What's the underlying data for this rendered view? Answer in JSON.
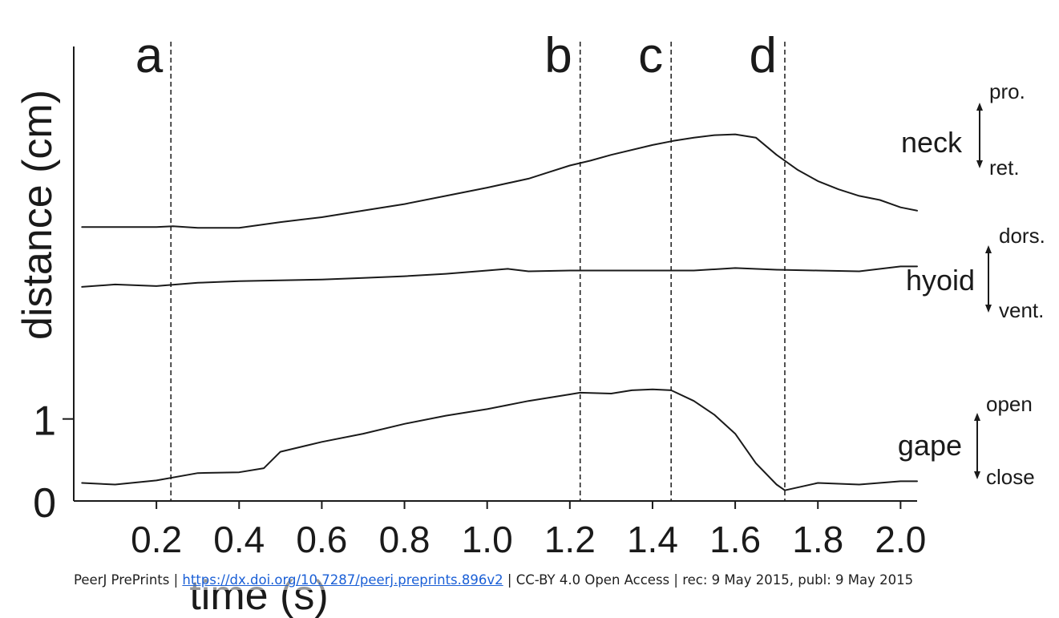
{
  "chart_data": {
    "type": "line",
    "ylabel": "distance (cm)",
    "xlabel": "time (s)",
    "xlim": [
      0,
      2.04
    ],
    "x_ticks": [
      "0.2",
      "0.4",
      "0.6",
      "0.8",
      "1.0",
      "1.2",
      "1.4",
      "1.6",
      "1.8",
      "2.0"
    ],
    "x_tick_values": [
      0.2,
      0.4,
      0.6,
      0.8,
      1.0,
      1.2,
      1.4,
      1.6,
      1.8,
      2.0
    ],
    "ylim": [
      0,
      5.6
    ],
    "y_ticks": [
      "0",
      "1"
    ],
    "y_tick_values": [
      0,
      1
    ],
    "grid": false,
    "phase_lines": [
      {
        "label": "a",
        "x": 0.235
      },
      {
        "label": "b",
        "x": 1.225
      },
      {
        "label": "c",
        "x": 1.445
      },
      {
        "label": "d",
        "x": 1.72
      }
    ],
    "series": [
      {
        "name": "neck",
        "arrow_top": "pro.",
        "arrow_bottom": "ret.",
        "x": [
          0.02,
          0.2,
          0.24,
          0.3,
          0.4,
          0.5,
          0.6,
          0.7,
          0.8,
          0.9,
          1.0,
          1.1,
          1.15,
          1.2,
          1.25,
          1.3,
          1.4,
          1.45,
          1.5,
          1.55,
          1.6,
          1.65,
          1.7,
          1.75,
          1.8,
          1.85,
          1.9,
          1.95,
          2.0,
          2.04
        ],
        "values": [
          3.34,
          3.34,
          3.35,
          3.33,
          3.33,
          3.4,
          3.46,
          3.54,
          3.62,
          3.72,
          3.82,
          3.93,
          4.01,
          4.09,
          4.15,
          4.22,
          4.34,
          4.39,
          4.43,
          4.46,
          4.47,
          4.43,
          4.22,
          4.04,
          3.9,
          3.8,
          3.72,
          3.67,
          3.58,
          3.54
        ]
      },
      {
        "name": "hyoid",
        "arrow_top": "dors.",
        "arrow_bottom": "vent.",
        "x": [
          0.02,
          0.1,
          0.2,
          0.3,
          0.4,
          0.5,
          0.6,
          0.7,
          0.8,
          0.9,
          1.0,
          1.05,
          1.1,
          1.2,
          1.3,
          1.4,
          1.5,
          1.6,
          1.7,
          1.8,
          1.9,
          2.0,
          2.04
        ],
        "values": [
          2.61,
          2.64,
          2.62,
          2.66,
          2.68,
          2.69,
          2.7,
          2.72,
          2.74,
          2.77,
          2.81,
          2.83,
          2.8,
          2.81,
          2.81,
          2.81,
          2.81,
          2.84,
          2.82,
          2.81,
          2.8,
          2.86,
          2.86
        ]
      },
      {
        "name": "gape",
        "arrow_top": "open",
        "arrow_bottom": "close",
        "x": [
          0.02,
          0.1,
          0.2,
          0.3,
          0.4,
          0.46,
          0.5,
          0.6,
          0.7,
          0.8,
          0.9,
          1.0,
          1.1,
          1.2,
          1.225,
          1.3,
          1.35,
          1.4,
          1.445,
          1.5,
          1.55,
          1.6,
          1.65,
          1.7,
          1.72,
          1.8,
          1.9,
          2.0,
          2.04
        ],
        "values": [
          0.22,
          0.2,
          0.25,
          0.34,
          0.35,
          0.4,
          0.6,
          0.72,
          0.82,
          0.94,
          1.04,
          1.12,
          1.22,
          1.3,
          1.32,
          1.31,
          1.35,
          1.36,
          1.35,
          1.22,
          1.05,
          0.82,
          0.46,
          0.2,
          0.13,
          0.22,
          0.2,
          0.24,
          0.24
        ]
      }
    ]
  },
  "footer": {
    "prefix": "PeerJ PrePrints | ",
    "link": "https://dx.doi.org/10.7287/peerj.preprints.896v2",
    "suffix": " | CC-BY 4.0 Open Access | rec: 9 May 2015, publ: 9 May 2015"
  }
}
